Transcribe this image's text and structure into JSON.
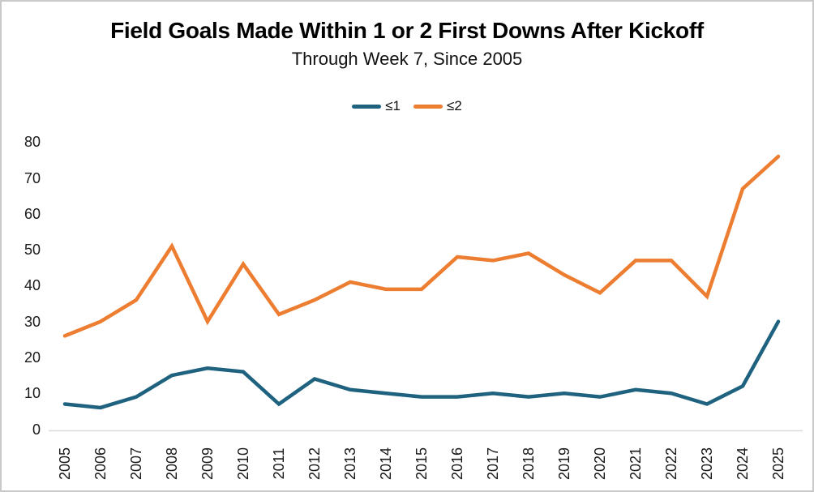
{
  "title": "Field Goals Made Within 1 or 2 First Downs After Kickoff",
  "subtitle": "Through Week 7, Since 2005",
  "legend": [
    {
      "label": "≤1",
      "color": "#1F627F"
    },
    {
      "label": "≤2",
      "color": "#ED7D31"
    }
  ],
  "chart_data": {
    "type": "line",
    "title": "Field Goals Made Within 1 or 2 First Downs After Kickoff",
    "subtitle": "Through Week 7, Since 2005",
    "x": [
      2005,
      2006,
      2007,
      2008,
      2009,
      2010,
      2011,
      2012,
      2013,
      2014,
      2015,
      2016,
      2017,
      2018,
      2019,
      2020,
      2021,
      2022,
      2023,
      2024,
      2025
    ],
    "series": [
      {
        "name": "≤1",
        "color": "#1F627F",
        "values": [
          7,
          6,
          9,
          15,
          17,
          16,
          7,
          14,
          11,
          10,
          9,
          9,
          10,
          9,
          10,
          9,
          11,
          10,
          7,
          12,
          30
        ]
      },
      {
        "name": "≤2",
        "color": "#ED7D31",
        "values": [
          26,
          30,
          36,
          51,
          30,
          46,
          32,
          36,
          41,
          39,
          39,
          48,
          47,
          49,
          43,
          38,
          47,
          47,
          37,
          67,
          76
        ]
      }
    ],
    "ylim": [
      0,
      80
    ],
    "ytick_step": 10,
    "ytick_labels": [
      "0",
      "10",
      "20",
      "30",
      "40",
      "50",
      "60",
      "70",
      "80"
    ],
    "grid": false,
    "legend_position": "top",
    "axis_color": "#d9d9d9",
    "tick_label_color": "#1a1a1a",
    "line_width": 4.5
  }
}
